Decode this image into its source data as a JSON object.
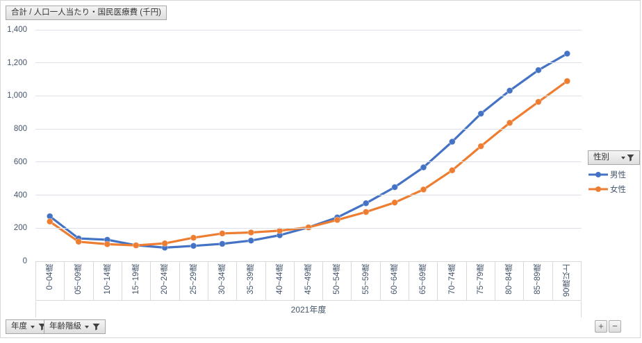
{
  "header": {
    "value_field_label": "合計 / 人口一人当たり・国民医療費 (千円)"
  },
  "legend": {
    "field_label": "性別"
  },
  "axis_field_buttons": [
    {
      "label": "年度"
    },
    {
      "label": "年齢階級"
    }
  ],
  "drill_buttons": {
    "expand_label": "+",
    "collapse_label": "−"
  },
  "chart_data": {
    "type": "line",
    "title": "合計 / 人口一人当たり・国民医療費 (千円)",
    "group_label": "2021年度",
    "categories": [
      "0~04歳",
      "05~09歳",
      "10~14歳",
      "15~19歳",
      "20~24歳",
      "25~29歳",
      "30~34歳",
      "35~39歳",
      "40~44歳",
      "45~49歳",
      "50~54歳",
      "55~59歳",
      "60~64歳",
      "65~69歳",
      "70~74歳",
      "75~79歳",
      "80~84歳",
      "85~89歳",
      "90歳以上"
    ],
    "series": [
      {
        "name": "男性",
        "color": "#4472C4",
        "values": [
          272,
          138,
          130,
          97,
          82,
          93,
          105,
          125,
          157,
          205,
          265,
          351,
          448,
          568,
          723,
          893,
          1032,
          1156,
          1256
        ]
      },
      {
        "name": "女性",
        "color": "#ED7D31",
        "values": [
          240,
          118,
          103,
          96,
          108,
          142,
          168,
          174,
          185,
          205,
          250,
          298,
          355,
          434,
          550,
          696,
          837,
          964,
          1090
        ]
      }
    ],
    "ylim": [
      0,
      1400
    ],
    "ytick_step": 200,
    "grid": true,
    "legend_position": "right",
    "xlabel": "",
    "ylabel": ""
  },
  "colors": {
    "gridline": "#DCE1E9",
    "axis_text": "#44546A",
    "series_male": "#4472C4",
    "series_female": "#ED7D31"
  }
}
